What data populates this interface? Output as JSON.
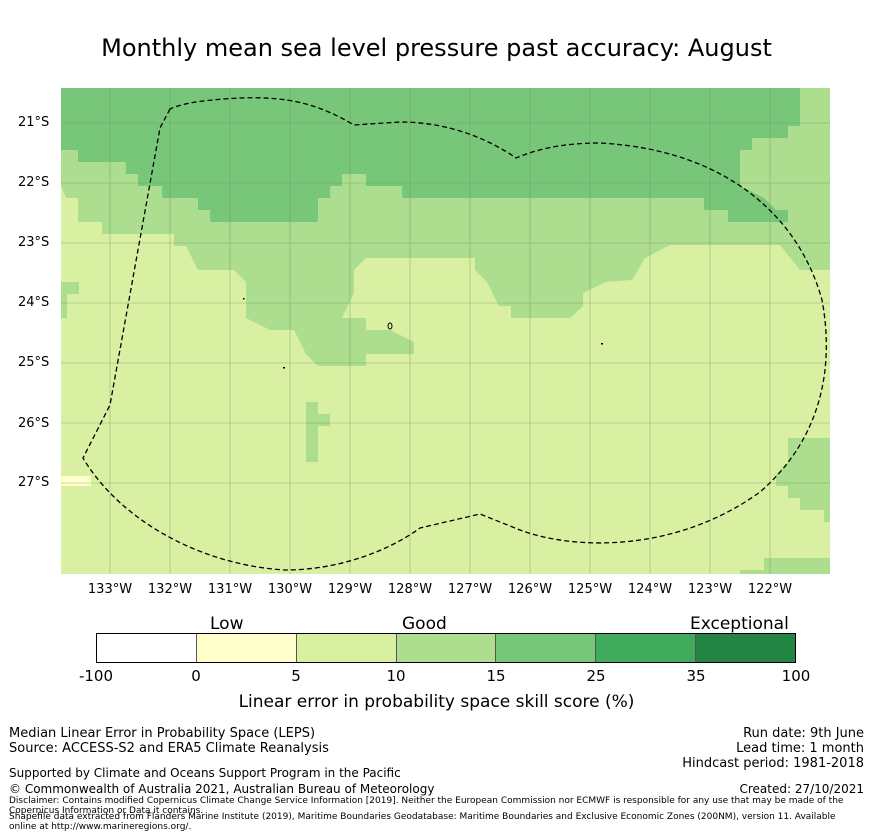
{
  "title": "Monthly mean sea level pressure past accuracy: August",
  "map": {
    "longitude_labels": [
      "133°W",
      "132°W",
      "131°W",
      "130°W",
      "129°W",
      "128°W",
      "127°W",
      "126°W",
      "125°W",
      "124°W",
      "123°W",
      "122°W"
    ],
    "latitude_labels": [
      "21°S",
      "22°S",
      "23°S",
      "24°S",
      "25°S",
      "26°S",
      "27°S"
    ],
    "colors": {
      "below_0": "#ffffff",
      "0_5": "#ffffcc",
      "5_10": "#d9f0a3",
      "10_15": "#addd8e",
      "15_25": "#78c679",
      "25_35": "#41ab5d",
      "35_100": "#238443",
      "boundary": "#000000",
      "grid": "#6b8e5a"
    }
  },
  "colorbar": {
    "categories": [
      "Low",
      "Good",
      "Exceptional"
    ],
    "ticks": [
      "-100",
      "0",
      "5",
      "10",
      "15",
      "25",
      "35",
      "100"
    ],
    "segment_colors": [
      "#ffffff",
      "#ffffcc",
      "#d9f0a3",
      "#addd8e",
      "#78c679",
      "#41ab5d",
      "#238443"
    ],
    "label": "Linear error in probability space skill score (%)"
  },
  "footer": {
    "left_line1": "Median Linear Error in Probability Space (LEPS)",
    "left_line2": "Source: ACCESS-S2 and ERA5 Climate Reanalysis",
    "support": "Supported by Climate and Oceans Support Program in the Pacific",
    "copyright": "© Commonwealth of Australia 2021, Australian Bureau of Meteorology",
    "disclaimer1": "Disclaimer: Contains modified Copernicus Climate Change Service Information [2019]. Neither the European Commission nor ECMWF is responsible for any use that may be made of the",
    "disclaimer2": "Copernicus Information or Data it contains.",
    "disclaimer3": "Shapefile data extracted from Flanders Marine Institute (2019), Maritime Boundaries Geodatabase: Maritime Boundaries and Exclusive Economic Zones (200NM), version 11. Available",
    "disclaimer4": "online at http://www.marineregions.org/.",
    "run_date": "Run date: 9th June",
    "lead_time": "Lead time: 1 month",
    "hindcast": "Hindcast period: 1981-2018",
    "created": "Created: 27/10/2021"
  }
}
